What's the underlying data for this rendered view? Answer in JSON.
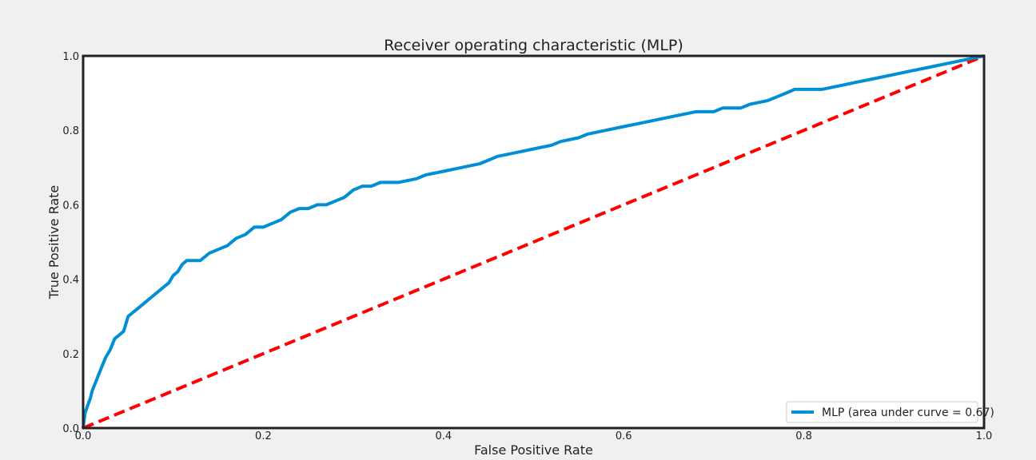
{
  "chart_data": {
    "type": "line",
    "title": "Receiver operating characteristic (MLP)",
    "xlabel": "False Positive Rate",
    "ylabel": "True Positive Rate",
    "xlim": [
      0.0,
      1.0
    ],
    "ylim": [
      0.0,
      1.0
    ],
    "x_ticks": [
      "0.0",
      "0.2",
      "0.4",
      "0.6",
      "0.8",
      "1.0"
    ],
    "y_ticks": [
      "0.0",
      "0.2",
      "0.4",
      "0.6",
      "0.8",
      "1.0"
    ],
    "grid": false,
    "legend_position": "lower-right",
    "series": [
      {
        "name": "MLP (area under curve = 0.67)",
        "color": "#008fd5",
        "style": "solid",
        "x": [
          0.0,
          0.002,
          0.005,
          0.008,
          0.01,
          0.015,
          0.02,
          0.025,
          0.03,
          0.035,
          0.04,
          0.045,
          0.05,
          0.055,
          0.06,
          0.065,
          0.07,
          0.075,
          0.08,
          0.085,
          0.09,
          0.095,
          0.1,
          0.105,
          0.11,
          0.115,
          0.12,
          0.13,
          0.14,
          0.15,
          0.16,
          0.17,
          0.18,
          0.19,
          0.2,
          0.21,
          0.22,
          0.23,
          0.24,
          0.25,
          0.26,
          0.27,
          0.28,
          0.29,
          0.3,
          0.31,
          0.32,
          0.33,
          0.35,
          0.37,
          0.38,
          0.4,
          0.42,
          0.44,
          0.45,
          0.46,
          0.48,
          0.5,
          0.52,
          0.53,
          0.55,
          0.56,
          0.58,
          0.6,
          0.62,
          0.64,
          0.66,
          0.68,
          0.7,
          0.71,
          0.72,
          0.73,
          0.74,
          0.76,
          0.77,
          0.78,
          0.79,
          0.8,
          0.82,
          0.84,
          0.86,
          0.88,
          0.9,
          0.92,
          0.94,
          0.96,
          0.98,
          1.0
        ],
        "y": [
          0.0,
          0.04,
          0.06,
          0.08,
          0.1,
          0.13,
          0.16,
          0.19,
          0.21,
          0.24,
          0.25,
          0.26,
          0.3,
          0.31,
          0.32,
          0.33,
          0.34,
          0.35,
          0.36,
          0.37,
          0.38,
          0.39,
          0.41,
          0.42,
          0.44,
          0.45,
          0.45,
          0.45,
          0.47,
          0.48,
          0.49,
          0.51,
          0.52,
          0.54,
          0.54,
          0.55,
          0.56,
          0.58,
          0.59,
          0.59,
          0.6,
          0.6,
          0.61,
          0.62,
          0.64,
          0.65,
          0.65,
          0.66,
          0.66,
          0.67,
          0.68,
          0.69,
          0.7,
          0.71,
          0.72,
          0.73,
          0.74,
          0.75,
          0.76,
          0.77,
          0.78,
          0.79,
          0.8,
          0.81,
          0.82,
          0.83,
          0.84,
          0.85,
          0.85,
          0.86,
          0.86,
          0.86,
          0.87,
          0.88,
          0.89,
          0.9,
          0.91,
          0.91,
          0.91,
          0.92,
          0.93,
          0.94,
          0.95,
          0.96,
          0.97,
          0.98,
          0.99,
          1.0
        ]
      },
      {
        "color": "#ff0000",
        "style": "dashed",
        "x": [
          0.0,
          1.0
        ],
        "y": [
          0.0,
          1.0
        ]
      }
    ]
  }
}
